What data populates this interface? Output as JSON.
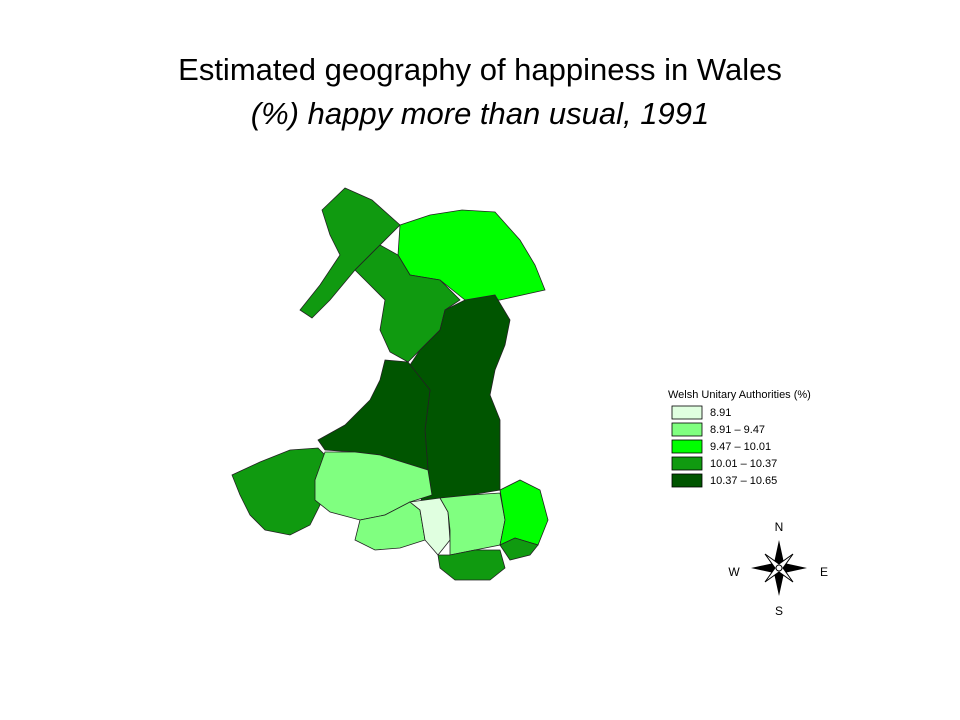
{
  "title": "Estimated geography of happiness in Wales",
  "subtitle": "(%) happy more than usual, 1991",
  "legend": {
    "title": "Welsh Unitary Authorities  (%)",
    "items": [
      {
        "label": "8.91",
        "color": "#e0ffe0"
      },
      {
        "label": "8.91 – 9.47",
        "color": "#80ff80"
      },
      {
        "label": "9.47 – 10.01",
        "color": "#00ff00"
      },
      {
        "label": "10.01 – 10.37",
        "color": "#109a10"
      },
      {
        "label": "10.37 – 10.65",
        "color": "#005500"
      }
    ]
  },
  "compass": {
    "north": "N",
    "south": "S",
    "east": "E",
    "west": "W"
  }
}
